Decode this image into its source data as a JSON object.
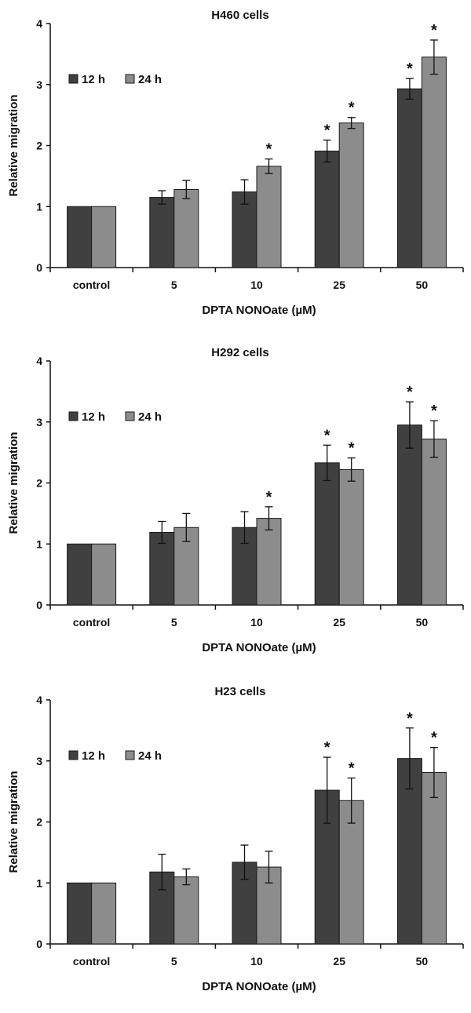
{
  "colors": {
    "h12": "#404040",
    "h24": "#8c8c8c",
    "axis": "#111111"
  },
  "chart_data": [
    {
      "type": "bar",
      "title": "H460 cells",
      "xlabel": "DPTA NONOate (µM)",
      "ylabel": "Relative migration",
      "ylim": [
        0,
        4
      ],
      "yticks": [
        "0",
        "1",
        "2",
        "3",
        "4"
      ],
      "categories": [
        "control",
        "5",
        "10",
        "25",
        "50"
      ],
      "legend": "top-left",
      "series": [
        {
          "name": "12 h",
          "values": [
            1.0,
            1.15,
            1.24,
            1.91,
            2.93
          ],
          "errors": [
            0,
            0.11,
            0.2,
            0.18,
            0.17
          ],
          "significant": [
            false,
            false,
            false,
            true,
            true
          ]
        },
        {
          "name": "24 h",
          "values": [
            1.0,
            1.28,
            1.66,
            2.37,
            3.45
          ],
          "errors": [
            0,
            0.15,
            0.12,
            0.09,
            0.28
          ],
          "significant": [
            false,
            false,
            true,
            true,
            true
          ]
        }
      ],
      "significance_mark": "*"
    },
    {
      "type": "bar",
      "title": "H292 cells",
      "xlabel": "DPTA NONOate (µM)",
      "ylabel": "Relative migration",
      "ylim": [
        0,
        4
      ],
      "yticks": [
        "0",
        "1",
        "2",
        "3",
        "4"
      ],
      "categories": [
        "control",
        "5",
        "10",
        "25",
        "50"
      ],
      "legend": "top-left",
      "series": [
        {
          "name": "12 h",
          "values": [
            1.0,
            1.19,
            1.27,
            2.33,
            2.95
          ],
          "errors": [
            0,
            0.18,
            0.26,
            0.29,
            0.38
          ],
          "significant": [
            false,
            false,
            false,
            true,
            true
          ]
        },
        {
          "name": "24 h",
          "values": [
            1.0,
            1.27,
            1.42,
            2.22,
            2.72
          ],
          "errors": [
            0,
            0.23,
            0.19,
            0.19,
            0.3
          ],
          "significant": [
            false,
            false,
            true,
            true,
            true
          ]
        }
      ],
      "significance_mark": "*"
    },
    {
      "type": "bar",
      "title": "H23 cells",
      "xlabel": "DPTA NONOate (µM)",
      "ylabel": "Relative migration",
      "ylim": [
        0,
        4
      ],
      "yticks": [
        "0",
        "1",
        "2",
        "3",
        "4"
      ],
      "categories": [
        "control",
        "5",
        "10",
        "25",
        "50"
      ],
      "legend": "top-left",
      "series": [
        {
          "name": "12 h",
          "values": [
            1.0,
            1.18,
            1.34,
            2.52,
            3.04
          ],
          "errors": [
            0,
            0.29,
            0.28,
            0.54,
            0.5
          ],
          "significant": [
            false,
            false,
            false,
            true,
            true
          ]
        },
        {
          "name": "24 h",
          "values": [
            1.0,
            1.1,
            1.26,
            2.35,
            2.81
          ],
          "errors": [
            0,
            0.13,
            0.26,
            0.37,
            0.41
          ],
          "significant": [
            false,
            false,
            false,
            true,
            true
          ]
        }
      ],
      "significance_mark": "*"
    }
  ]
}
